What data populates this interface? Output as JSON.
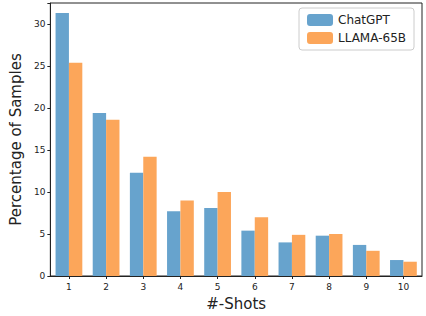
{
  "chart_data": {
    "type": "bar",
    "x_label": "#-Shots",
    "y_label": "Percentage of Samples",
    "categories": [
      "1",
      "2",
      "3",
      "4",
      "5",
      "6",
      "7",
      "8",
      "9",
      "10"
    ],
    "series": [
      {
        "name": "ChatGPT",
        "color": "#67a3cd",
        "values": [
          31.3,
          19.4,
          12.3,
          7.7,
          8.1,
          5.4,
          4.0,
          4.8,
          3.7,
          1.9
        ]
      },
      {
        "name": "LLAMA-65B",
        "color": "#fca65a",
        "values": [
          25.4,
          18.6,
          14.2,
          9.0,
          10.0,
          7.0,
          4.9,
          5.0,
          3.0,
          1.7
        ]
      }
    ],
    "ylim": [
      0,
      32.5
    ],
    "yticks": [
      0,
      5,
      10,
      15,
      20,
      25,
      30
    ],
    "grid": false,
    "legend": "top-right"
  }
}
